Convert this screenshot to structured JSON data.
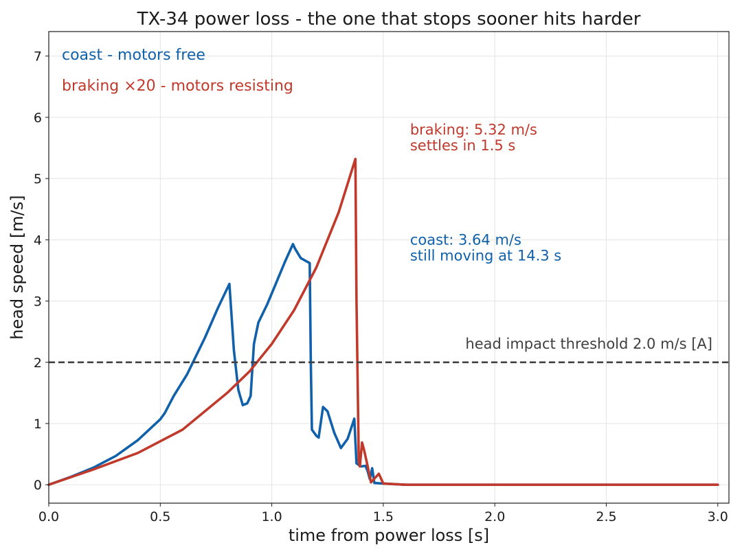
{
  "chart_data": {
    "type": "line",
    "title": "TX-34 power loss - the one that stops sooner hits harder",
    "xlabel": "time from power loss [s]",
    "ylabel": "head speed [m/s]",
    "xlim": [
      0.0,
      3.05
    ],
    "ylim": [
      -0.3,
      7.4
    ],
    "xticks": [
      0.0,
      0.5,
      1.0,
      1.5,
      2.0,
      2.5,
      3.0
    ],
    "xtick_labels": [
      "0.0",
      "0.5",
      "1.0",
      "1.5",
      "2.0",
      "2.5",
      "3.0"
    ],
    "yticks": [
      0,
      1,
      2,
      3,
      4,
      5,
      6,
      7
    ],
    "ytick_labels": [
      "0",
      "1",
      "2",
      "3",
      "4",
      "5",
      "6",
      "7"
    ],
    "grid": true,
    "legend_position": "top-left",
    "series": [
      {
        "name": "coast - motors free",
        "color": "#1060aa",
        "x": [
          0.0,
          0.1,
          0.2,
          0.3,
          0.4,
          0.5,
          0.52,
          0.56,
          0.62,
          0.7,
          0.76,
          0.81,
          0.83,
          0.85,
          0.87,
          0.89,
          0.905,
          0.92,
          0.94,
          0.98,
          1.02,
          1.06,
          1.095,
          1.105,
          1.13,
          1.17,
          1.175,
          1.18,
          1.2,
          1.21,
          1.23,
          1.25,
          1.28,
          1.31,
          1.34,
          1.37,
          1.38,
          1.4,
          1.42,
          1.43,
          1.44,
          1.45,
          1.46,
          1.5,
          1.55,
          1.6,
          2.0,
          2.5,
          3.0
        ],
        "y": [
          0.0,
          0.13,
          0.28,
          0.47,
          0.73,
          1.07,
          1.17,
          1.45,
          1.8,
          2.4,
          2.9,
          3.28,
          2.2,
          1.55,
          1.3,
          1.33,
          1.45,
          2.3,
          2.65,
          2.95,
          3.3,
          3.65,
          3.93,
          3.85,
          3.7,
          3.62,
          2.0,
          0.9,
          0.8,
          0.77,
          1.27,
          1.2,
          0.85,
          0.6,
          0.75,
          1.08,
          0.35,
          0.3,
          0.31,
          0.22,
          0.09,
          0.27,
          0.03,
          0.02,
          0.01,
          0.0,
          0.0,
          0.0,
          0.0
        ]
      },
      {
        "name": "braking ×20 - motors resisting",
        "color": "#c0392b",
        "x": [
          0.0,
          0.2,
          0.4,
          0.6,
          0.8,
          0.9,
          1.0,
          1.1,
          1.2,
          1.3,
          1.375,
          1.38,
          1.39,
          1.395,
          1.405,
          1.415,
          1.43,
          1.445,
          1.46,
          1.48,
          1.5,
          1.55,
          1.6,
          2.0,
          2.5,
          3.0
        ],
        "y": [
          0.0,
          0.25,
          0.52,
          0.9,
          1.5,
          1.85,
          2.3,
          2.85,
          3.55,
          4.45,
          5.32,
          3.0,
          0.4,
          0.3,
          0.69,
          0.55,
          0.3,
          0.04,
          0.1,
          0.18,
          0.02,
          0.01,
          0.0,
          0.0,
          0.0,
          0.0
        ]
      }
    ],
    "threshold": {
      "y": 2.0,
      "label": "head impact threshold 2.0 m/s [A]",
      "color": "#404040"
    },
    "annotations": [
      {
        "lines": [
          "braking: 5.32 m/s",
          "settles in 1.5 s"
        ],
        "x": 1.62,
        "y": 5.8,
        "color": "#c0392b"
      },
      {
        "lines": [
          "coast: 3.64 m/s",
          "still moving at 14.3 s"
        ],
        "x": 1.62,
        "y": 4.0,
        "color": "#1060aa"
      }
    ]
  }
}
